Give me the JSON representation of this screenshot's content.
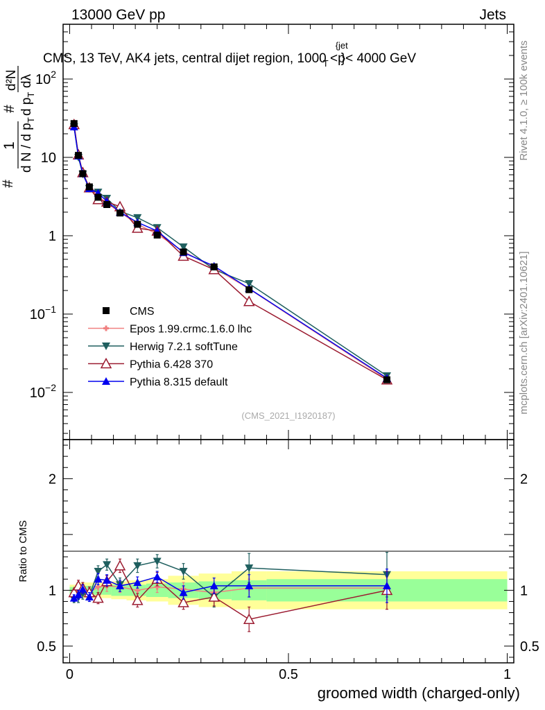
{
  "header": {
    "left": "13000 GeV pp",
    "right": "Jets"
  },
  "plot_title": "CMS, 13 TeV, AK4 jets, central dijet region, 1000 <p",
  "plot_title_sup": "{jet",
  "plot_title_sub": "T",
  "plot_title_end": "}< 4000 GeV",
  "side_text": {
    "rivet": "Rivet 4.1.0, ≥ 100k events",
    "mcplots": "mcplots.cern.ch [arXiv:2401.10621]"
  },
  "analysis_id": "(CMS_2021_I1920187)",
  "ylabel_main": {
    "lead": "#",
    "one": "1",
    "dn": "d N / d p",
    "dn_sub": "T",
    "hash": "#",
    "dp": "d p",
    "dp_sub": "T",
    "d2n": "d²N",
    "dlam": "dλ"
  },
  "ylabel_ratio": "Ratio to CMS",
  "xlabel": "groomed width (charged-only)",
  "colors": {
    "cms": "#000000",
    "epos": "#f08080",
    "herwig": "#1f5f5f",
    "pythia6": "#9b1b30",
    "pythia8": "#0000ee",
    "band_inner": "#99ff99",
    "band_outer": "#ffff99"
  },
  "chart_data": {
    "type": "scatter",
    "x": [
      0.01,
      0.02,
      0.03,
      0.045,
      0.065,
      0.085,
      0.115,
      0.155,
      0.2,
      0.26,
      0.33,
      0.41,
      0.725
    ],
    "x_bins": [
      [
        0,
        0.015
      ],
      [
        0.015,
        0.025
      ],
      [
        0.025,
        0.035
      ],
      [
        0.035,
        0.055
      ],
      [
        0.055,
        0.075
      ],
      [
        0.075,
        0.095
      ],
      [
        0.095,
        0.13
      ],
      [
        0.13,
        0.175
      ],
      [
        0.175,
        0.225
      ],
      [
        0.225,
        0.295
      ],
      [
        0.295,
        0.37
      ],
      [
        0.37,
        0.45
      ],
      [
        0.45,
        1.0
      ]
    ],
    "xlim": [
      -0.015,
      1.015
    ],
    "xticks": [
      0,
      0.5,
      1
    ],
    "xtick_labels": [
      "0",
      "0.5",
      "1"
    ],
    "main": {
      "yscale": "log",
      "ylim": [
        0.0025,
        500
      ],
      "ytick_labels": [
        {
          "v": 0.01,
          "base": "10",
          "exp": "−2"
        },
        {
          "v": 0.1,
          "base": "10",
          "exp": "−1"
        },
        {
          "v": 1,
          "base": "1",
          "exp": ""
        },
        {
          "v": 10,
          "base": "10",
          "exp": ""
        },
        {
          "v": 100,
          "base": "10",
          "exp": "2"
        }
      ]
    },
    "ratio": {
      "ylim": [
        0.35,
        2.35
      ],
      "yticks": [
        0.5,
        1,
        2
      ],
      "ytick_labels": [
        "0.5",
        "1",
        "2"
      ],
      "band_inner": [
        0.03,
        0.04,
        0.04,
        0.04,
        0.04,
        0.04,
        0.05,
        0.05,
        0.06,
        0.07,
        0.08,
        0.09,
        0.1
      ],
      "band_outer": [
        0.05,
        0.07,
        0.07,
        0.07,
        0.07,
        0.07,
        0.08,
        0.09,
        0.1,
        0.13,
        0.15,
        0.17,
        0.17
      ]
    },
    "series": [
      {
        "name": "CMS",
        "style": "cms",
        "values": [
          27,
          10.6,
          6.2,
          4.2,
          3.1,
          2.5,
          1.95,
          1.4,
          1.02,
          0.62,
          0.4,
          0.205,
          0.0145
        ],
        "ratio": [
          1,
          1,
          1,
          1,
          1,
          1,
          1,
          1,
          1,
          1,
          1,
          1,
          1
        ],
        "ratio_err": [
          0,
          0,
          0,
          0,
          0,
          0,
          0,
          0,
          0,
          0,
          0,
          0,
          0
        ]
      },
      {
        "name": "Epos 1.99.crmc.1.6.0 lhc",
        "style": "epos",
        "values": [
          26.5,
          10.5,
          6.3,
          4.1,
          3.2,
          2.6,
          2.0,
          1.4,
          1.05,
          0.63,
          0.39,
          0.21,
          0.0148
        ],
        "ratio": [
          0.98,
          0.99,
          1.01,
          0.98,
          1.03,
          1.04,
          1.03,
          1.0,
          1.03,
          1.01,
          0.98,
          1.02,
          1.02
        ],
        "ratio_err": [
          0.03,
          0.04,
          0.04,
          0.04,
          0.05,
          0.05,
          0.05,
          0.05,
          0.05,
          0.06,
          0.07,
          0.08,
          0.1
        ]
      },
      {
        "name": "Herwig 7.2.1 softTune",
        "style": "herwig",
        "values": [
          24.5,
          10.0,
          6.1,
          4.0,
          3.6,
          3.0,
          2.05,
          1.7,
          1.27,
          0.72,
          0.37,
          0.245,
          0.0163
        ],
        "ratio": [
          0.92,
          0.94,
          0.97,
          0.95,
          1.17,
          1.23,
          1.05,
          1.22,
          1.26,
          1.17,
          0.94,
          1.2,
          1.14
        ],
        "ratio_err": [
          0.03,
          0.05,
          0.05,
          0.05,
          0.05,
          0.05,
          0.06,
          0.06,
          0.06,
          0.07,
          0.09,
          0.13,
          0.2
        ]
      },
      {
        "name": "Pythia 6.428 370",
        "style": "pythia6",
        "values": [
          26.3,
          10.8,
          6.4,
          4.1,
          2.9,
          2.7,
          2.35,
          1.25,
          1.15,
          0.55,
          0.37,
          0.145,
          0.0145
        ],
        "ratio": [
          0.98,
          1.04,
          1.02,
          0.98,
          0.93,
          1.08,
          1.22,
          0.91,
          1.1,
          0.89,
          0.94,
          0.74,
          1.0
        ],
        "ratio_err": [
          0.03,
          0.05,
          0.05,
          0.05,
          0.05,
          0.05,
          0.06,
          0.06,
          0.06,
          0.06,
          0.08,
          0.11,
          0.17
        ]
      },
      {
        "name": "Pythia 8.315 default",
        "style": "pythia8",
        "values": [
          24.5,
          10.4,
          6.2,
          4.0,
          3.5,
          2.75,
          2.0,
          1.48,
          1.15,
          0.61,
          0.41,
          0.212,
          0.0152
        ],
        "ratio": [
          0.93,
          0.96,
          1.01,
          0.94,
          1.1,
          1.09,
          1.04,
          1.07,
          1.12,
          0.98,
          1.04,
          1.04,
          1.04
        ],
        "ratio_err": [
          0.03,
          0.04,
          0.04,
          0.04,
          0.05,
          0.05,
          0.05,
          0.05,
          0.05,
          0.06,
          0.07,
          0.1,
          0.15
        ]
      }
    ]
  }
}
